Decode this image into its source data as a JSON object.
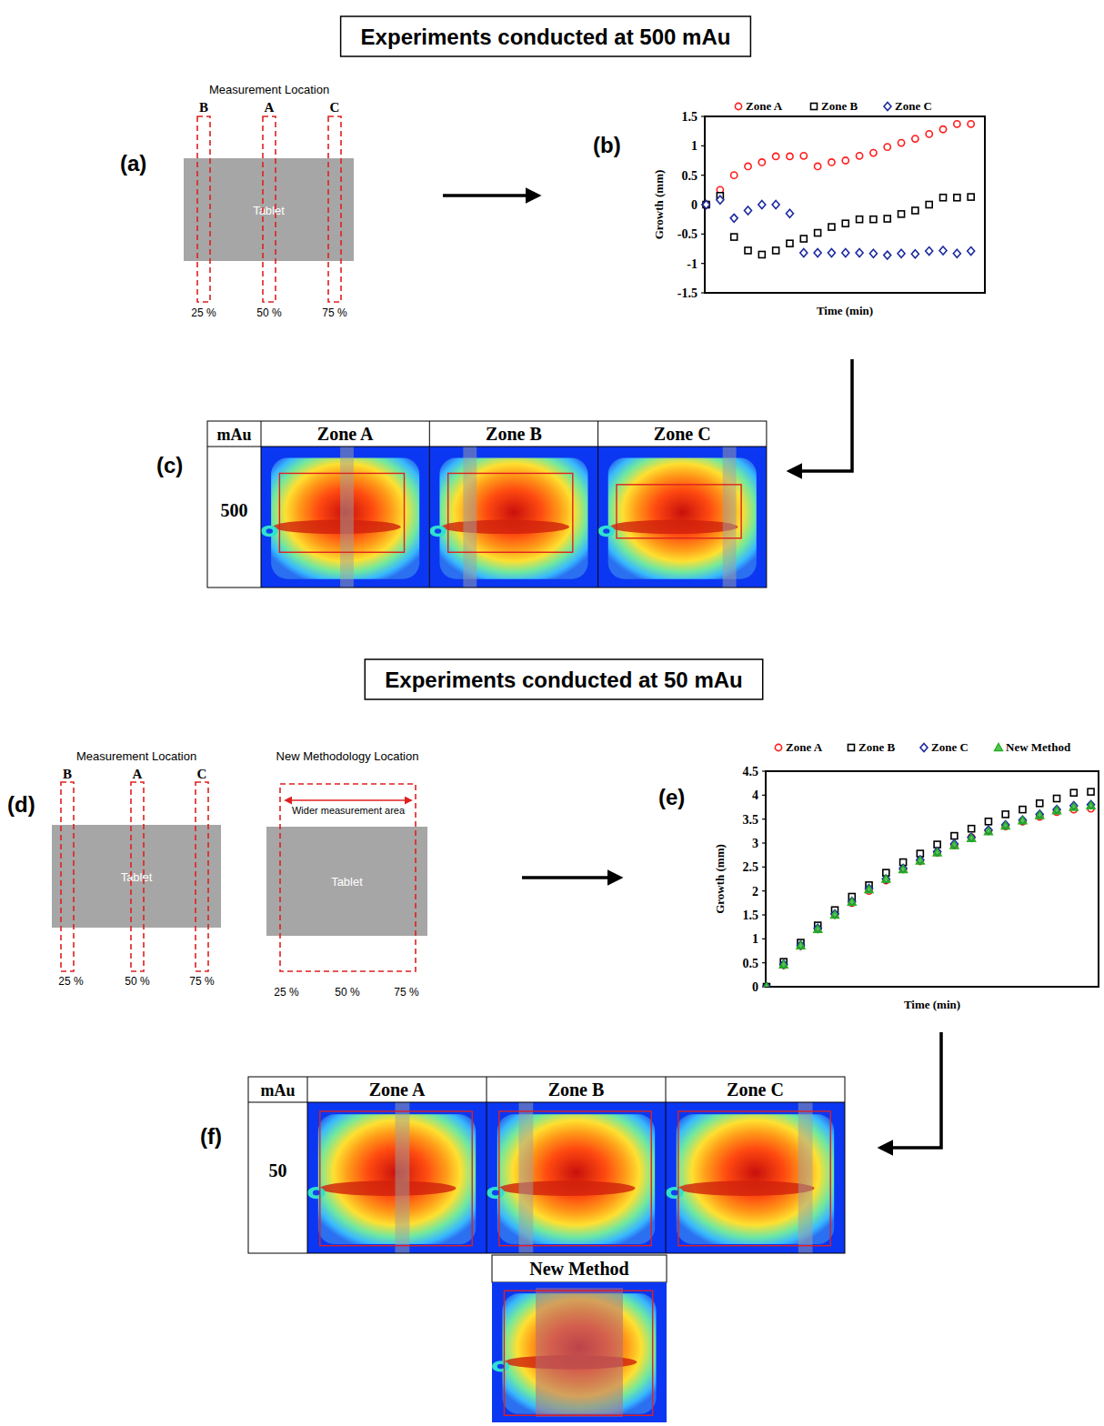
{
  "sections": [
    {
      "title": "Experiments conducted at 500 mAu"
    },
    {
      "title": "Experiments conducted at 50 mAu"
    }
  ],
  "schematics": [
    {
      "letter": "(a)",
      "title": "Measurement Location",
      "zones": [
        "B",
        "A",
        "C"
      ],
      "object": "Tablet",
      "positions": [
        "25 %",
        "50 %",
        "75 %"
      ]
    },
    {
      "letter": "(d)",
      "title": "Measurement Location",
      "zones": [
        "B",
        "A",
        "C"
      ],
      "object": "Tablet",
      "positions": [
        "25 %",
        "50 %",
        "75 %"
      ]
    },
    {
      "title": "New Methodology Location",
      "object": "Tablet",
      "annotation": "Wider measurement area",
      "positions": [
        "25 %",
        "50 %",
        "75 %"
      ]
    }
  ],
  "chart_data": [
    {
      "letter": "(b)",
      "type": "scatter",
      "x_label": "Time (min)",
      "y_label": "Growth (mm)",
      "x": [
        0,
        1,
        2,
        3,
        4,
        5,
        6,
        7,
        8,
        9,
        10,
        11,
        12,
        13,
        14,
        15,
        16,
        17,
        18,
        19
      ],
      "xlim": [
        -0.1,
        20
      ],
      "ylim": [
        -1.5,
        1.5
      ],
      "yticks": [
        -1.5,
        -1,
        -0.5,
        0,
        0.5,
        1,
        1.5
      ],
      "tick_labels": "y",
      "legend": "top",
      "series": [
        {
          "name": "Zone A",
          "color": "#ff1a1a",
          "marker": "circle",
          "values": [
            0,
            0.25,
            0.5,
            0.65,
            0.72,
            0.82,
            0.82,
            0.83,
            0.65,
            0.72,
            0.75,
            0.83,
            0.88,
            0.98,
            1.05,
            1.12,
            1.2,
            1.28,
            1.37,
            1.37
          ]
        },
        {
          "name": "Zone B",
          "color": "#000000",
          "marker": "square",
          "values": [
            0,
            0.15,
            -0.55,
            -0.78,
            -0.85,
            -0.78,
            -0.66,
            -0.58,
            -0.48,
            -0.38,
            -0.32,
            -0.25,
            -0.25,
            -0.24,
            -0.16,
            -0.1,
            0,
            0.12,
            0.12,
            0.13
          ]
        },
        {
          "name": "Zone C",
          "color": "#1c2a9e",
          "marker": "diamond",
          "values": [
            0,
            0.08,
            -0.23,
            -0.1,
            0,
            0,
            -0.15,
            -0.82,
            -0.82,
            -0.82,
            -0.82,
            -0.82,
            -0.83,
            -0.86,
            -0.83,
            -0.84,
            -0.79,
            -0.78,
            -0.83,
            -0.79
          ]
        }
      ]
    },
    {
      "letter": "(e)",
      "type": "scatter",
      "x_label": "Time (min)",
      "y_label": "Growth (mm)",
      "x": [
        0,
        1,
        2,
        3,
        4,
        5,
        6,
        7,
        8,
        9,
        10,
        11,
        12,
        13,
        14,
        15,
        16,
        17,
        18,
        19
      ],
      "xlim": [
        -0.05,
        19.45
      ],
      "ylim": [
        0,
        4.5
      ],
      "yticks": [
        0,
        0.5,
        1,
        1.5,
        2,
        2.5,
        3,
        3.5,
        4,
        4.5
      ],
      "tick_labels": "y",
      "legend": "top",
      "series": [
        {
          "name": "Zone A",
          "color": "#ff1a1a",
          "marker": "circle",
          "values": [
            0,
            0.45,
            0.85,
            1.2,
            1.5,
            1.75,
            2,
            2.22,
            2.45,
            2.62,
            2.8,
            2.95,
            3.12,
            3.25,
            3.35,
            3.45,
            3.55,
            3.65,
            3.7,
            3.72
          ]
        },
        {
          "name": "Zone B",
          "color": "#000000",
          "marker": "square",
          "values": [
            0,
            0.52,
            0.92,
            1.28,
            1.6,
            1.88,
            2.12,
            2.38,
            2.6,
            2.78,
            2.97,
            3.15,
            3.3,
            3.45,
            3.6,
            3.7,
            3.83,
            3.93,
            4.05,
            4.07
          ]
        },
        {
          "name": "Zone C",
          "color": "#1c2a9e",
          "marker": "diamond",
          "values": [
            0,
            0.47,
            0.87,
            1.22,
            1.52,
            1.78,
            2.05,
            2.25,
            2.47,
            2.65,
            2.82,
            2.98,
            3.12,
            3.27,
            3.38,
            3.48,
            3.6,
            3.7,
            3.78,
            3.8
          ]
        },
        {
          "name": "New Method",
          "color": "#22b022",
          "marker": "triangle",
          "values": [
            0,
            0.46,
            0.86,
            1.2,
            1.5,
            1.77,
            2.03,
            2.25,
            2.45,
            2.63,
            2.8,
            2.95,
            3.1,
            3.24,
            3.36,
            3.47,
            3.58,
            3.68,
            3.75,
            3.78
          ]
        }
      ]
    }
  ],
  "image_tables": [
    {
      "letter": "(c)",
      "header": [
        "mAu",
        "Zone A",
        "Zone B",
        "Zone C"
      ],
      "row_label": 500
    },
    {
      "letter": "(f)",
      "header": [
        "mAu",
        "Zone A",
        "Zone B",
        "Zone C"
      ],
      "row_label": 50,
      "extra_header": "New Method"
    }
  ]
}
